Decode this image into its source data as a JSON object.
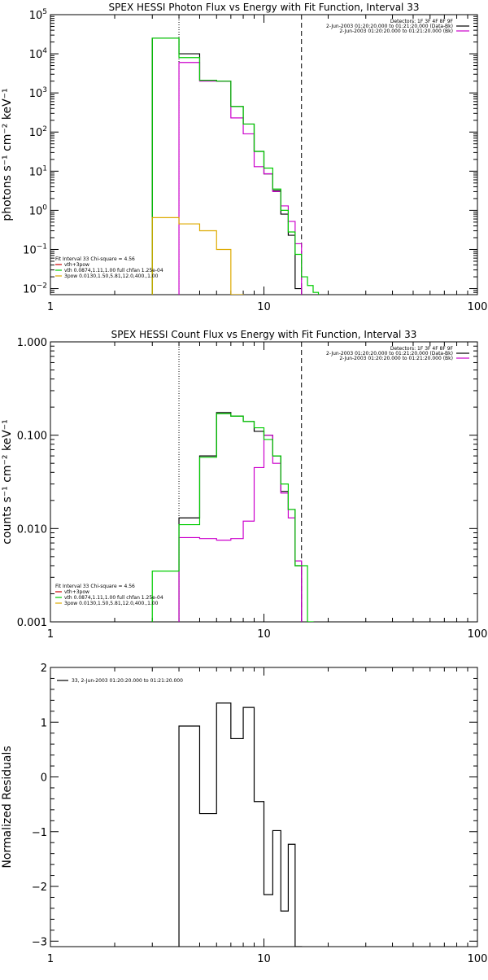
{
  "chart_data": [
    {
      "type": "line",
      "title": "SPEX HESSI Photon Flux vs Energy with Fit Function, Interval 33",
      "xlabel": "",
      "ylabel": "photons s⁻¹ cm⁻² keV⁻¹",
      "xscale": "log",
      "yscale": "log",
      "xlim": [
        1,
        100
      ],
      "ylim": [
        0.007,
        100000
      ],
      "x_ticks": [
        {
          "v": 1,
          "label": "1"
        },
        {
          "v": 10,
          "label": "10"
        },
        {
          "v": 100,
          "label": "100"
        }
      ],
      "y_ticks": [
        {
          "v": 100000,
          "b": "10",
          "e": "5"
        },
        {
          "v": 10000,
          "b": "10",
          "e": "4"
        },
        {
          "v": 1000,
          "b": "10",
          "e": "3"
        },
        {
          "v": 100,
          "b": "10",
          "e": "2"
        },
        {
          "v": 10,
          "b": "10",
          "e": "1"
        },
        {
          "v": 1,
          "b": "10",
          "e": "0"
        },
        {
          "v": 0.1,
          "b": "10",
          "e": "−1"
        },
        {
          "v": 0.01,
          "b": "10",
          "e": "−2"
        }
      ],
      "vlines": [
        {
          "x": 4.0,
          "style": "dotted"
        },
        {
          "x": 15.0,
          "style": "dashed"
        }
      ],
      "legend_tr": [
        {
          "text": "Detectors: 1F 3F 4F 8F 9F",
          "color": ""
        },
        {
          "text": "2-Jun-2003 01:20:20.000 to 01:21:20.000 (Data-Bk)",
          "color": "#000000"
        },
        {
          "text": "2-Jun-2003 01:20:20.000 to 01:21:20.000 (Bk)",
          "color": "#cc00cc"
        }
      ],
      "legend_bl": [
        {
          "text": "Fit Interval 33   Chi-square = 4.56",
          "color": ""
        },
        {
          "text": "vth+3pow",
          "color": "#cc0000"
        },
        {
          "text": "vth 0.0874,1.11,1.00  full chfan 1.25e-04",
          "color": "#00cc00"
        },
        {
          "text": "3pow 0.0130,1.50,5.81,12.0,400.,1.00",
          "color": "#ddaa00"
        }
      ],
      "series": [
        {
          "color": "#000000",
          "edges": [
            3,
            4,
            5,
            6,
            7,
            8,
            9,
            10,
            11,
            12,
            13,
            14,
            15
          ],
          "values": [
            25000,
            10000,
            2100,
            2000,
            450,
            160,
            32,
            8.5,
            3.2,
            0.8,
            0.23,
            0.01
          ]
        },
        {
          "color": "#cc00cc",
          "edges": [
            4,
            5,
            6,
            7,
            8,
            9,
            10,
            11,
            12,
            13,
            14,
            15
          ],
          "values": [
            6000,
            2000,
            2000,
            230,
            90,
            13,
            8.6,
            3.0,
            1.3,
            0.52,
            0.14
          ]
        },
        {
          "color": "#00cc00",
          "edges": [
            3,
            4,
            5,
            6,
            7,
            8,
            9,
            10,
            11,
            12,
            13,
            14,
            15,
            16,
            17,
            18
          ],
          "values": [
            25000,
            8000,
            2100,
            2000,
            450,
            160,
            32,
            12,
            3.5,
            1.0,
            0.28,
            0.075,
            0.02,
            0.012,
            0.008
          ]
        },
        {
          "color": "#ddaa00",
          "edges": [
            3,
            4,
            5,
            6,
            7,
            8
          ],
          "values": [
            0.65,
            0.45,
            0.3,
            0.1,
            0.007
          ]
        }
      ]
    },
    {
      "type": "line",
      "title": "SPEX HESSI Count Flux vs Energy with Fit Function, Interval 33",
      "xlabel": "",
      "ylabel": "counts s⁻¹ cm⁻² keV⁻¹",
      "xscale": "log",
      "yscale": "log",
      "xlim": [
        1,
        100
      ],
      "ylim": [
        0.001,
        1
      ],
      "x_ticks": [
        {
          "v": 1,
          "label": "1"
        },
        {
          "v": 10,
          "label": "10"
        },
        {
          "v": 100,
          "label": "100"
        }
      ],
      "y_ticks": [
        {
          "v": 1,
          "label": "1.000"
        },
        {
          "v": 0.1,
          "label": "0.100"
        },
        {
          "v": 0.01,
          "label": "0.010"
        },
        {
          "v": 0.001,
          "label": "0.001"
        }
      ],
      "vlines": [
        {
          "x": 4.0,
          "style": "dotted"
        },
        {
          "x": 15.0,
          "style": "dashed"
        }
      ],
      "legend_tr": [
        {
          "text": "Detectors: 1F 3F 4F 8F 9F",
          "color": ""
        },
        {
          "text": "2-Jun-2003 01:20:20.000 to 01:21:20.000 (Data-Bk)",
          "color": "#000000"
        },
        {
          "text": "2-Jun-2003 01:20:20.000 to 01:21:20.000 (Bk)",
          "color": "#cc00cc"
        }
      ],
      "legend_bl": [
        {
          "text": "Fit Interval 33   Chi-square = 4.56",
          "color": ""
        },
        {
          "text": "vth+3pow",
          "color": "#cc0000"
        },
        {
          "text": "vth 0.0874,1.11,1.00  full chfan 1.25e-04",
          "color": "#00cc00"
        },
        {
          "text": "3pow 0.0130,1.50,5.81,12.0,400.,1.00",
          "color": "#ddaa00"
        }
      ],
      "series": [
        {
          "color": "#000000",
          "edges": [
            4,
            5,
            6,
            7,
            8,
            9,
            10,
            11,
            12,
            13,
            14,
            15
          ],
          "values": [
            0.013,
            0.06,
            0.175,
            0.16,
            0.14,
            0.11,
            0.1,
            0.06,
            0.025,
            0.016,
            0.004
          ]
        },
        {
          "color": "#cc00cc",
          "edges": [
            4,
            5,
            6,
            7,
            8,
            9,
            10,
            11,
            12,
            13,
            14,
            15
          ],
          "values": [
            0.008,
            0.0078,
            0.0075,
            0.0078,
            0.012,
            0.045,
            0.1,
            0.05,
            0.024,
            0.013,
            0.0045
          ]
        },
        {
          "color": "#00cc00",
          "edges": [
            3,
            4,
            5,
            6,
            7,
            8,
            9,
            10,
            11,
            12,
            13,
            14,
            15,
            16,
            17
          ],
          "values": [
            0.0035,
            0.011,
            0.058,
            0.17,
            0.16,
            0.14,
            0.12,
            0.09,
            0.06,
            0.03,
            0.016,
            0.004,
            0.004,
            0.001
          ]
        }
      ]
    },
    {
      "type": "line",
      "title": "",
      "xlabel": "",
      "ylabel": "Normalized Residuals",
      "xscale": "log",
      "yscale": "linear",
      "xlim": [
        1,
        100
      ],
      "ylim": [
        -3.1,
        2
      ],
      "x_ticks": [
        {
          "v": 1,
          "label": "1"
        },
        {
          "v": 10,
          "label": "10"
        },
        {
          "v": 100,
          "label": "100"
        }
      ],
      "y_ticks": [
        {
          "v": 2,
          "label": "2"
        },
        {
          "v": 1,
          "label": "1"
        },
        {
          "v": 0,
          "label": "0"
        },
        {
          "v": -1,
          "label": "−1"
        },
        {
          "v": -2,
          "label": "−2"
        },
        {
          "v": -3,
          "label": "−3"
        }
      ],
      "vlines": [],
      "legend_tr": [],
      "legend_tl": [
        {
          "text": "33,  2-Jun-2003 01:20:20.000 to 01:21:20.000",
          "color": "#000000"
        }
      ],
      "legend_bl": [],
      "series": [
        {
          "color": "#000000",
          "edges": [
            4,
            5,
            6,
            7,
            8,
            9,
            10,
            11,
            12,
            13,
            14,
            15
          ],
          "values": [
            0.93,
            -0.67,
            1.35,
            0.7,
            1.27,
            -0.45,
            -2.15,
            -0.98,
            -2.45,
            -1.23,
            -3.1
          ],
          "start": -3.1
        }
      ]
    }
  ]
}
